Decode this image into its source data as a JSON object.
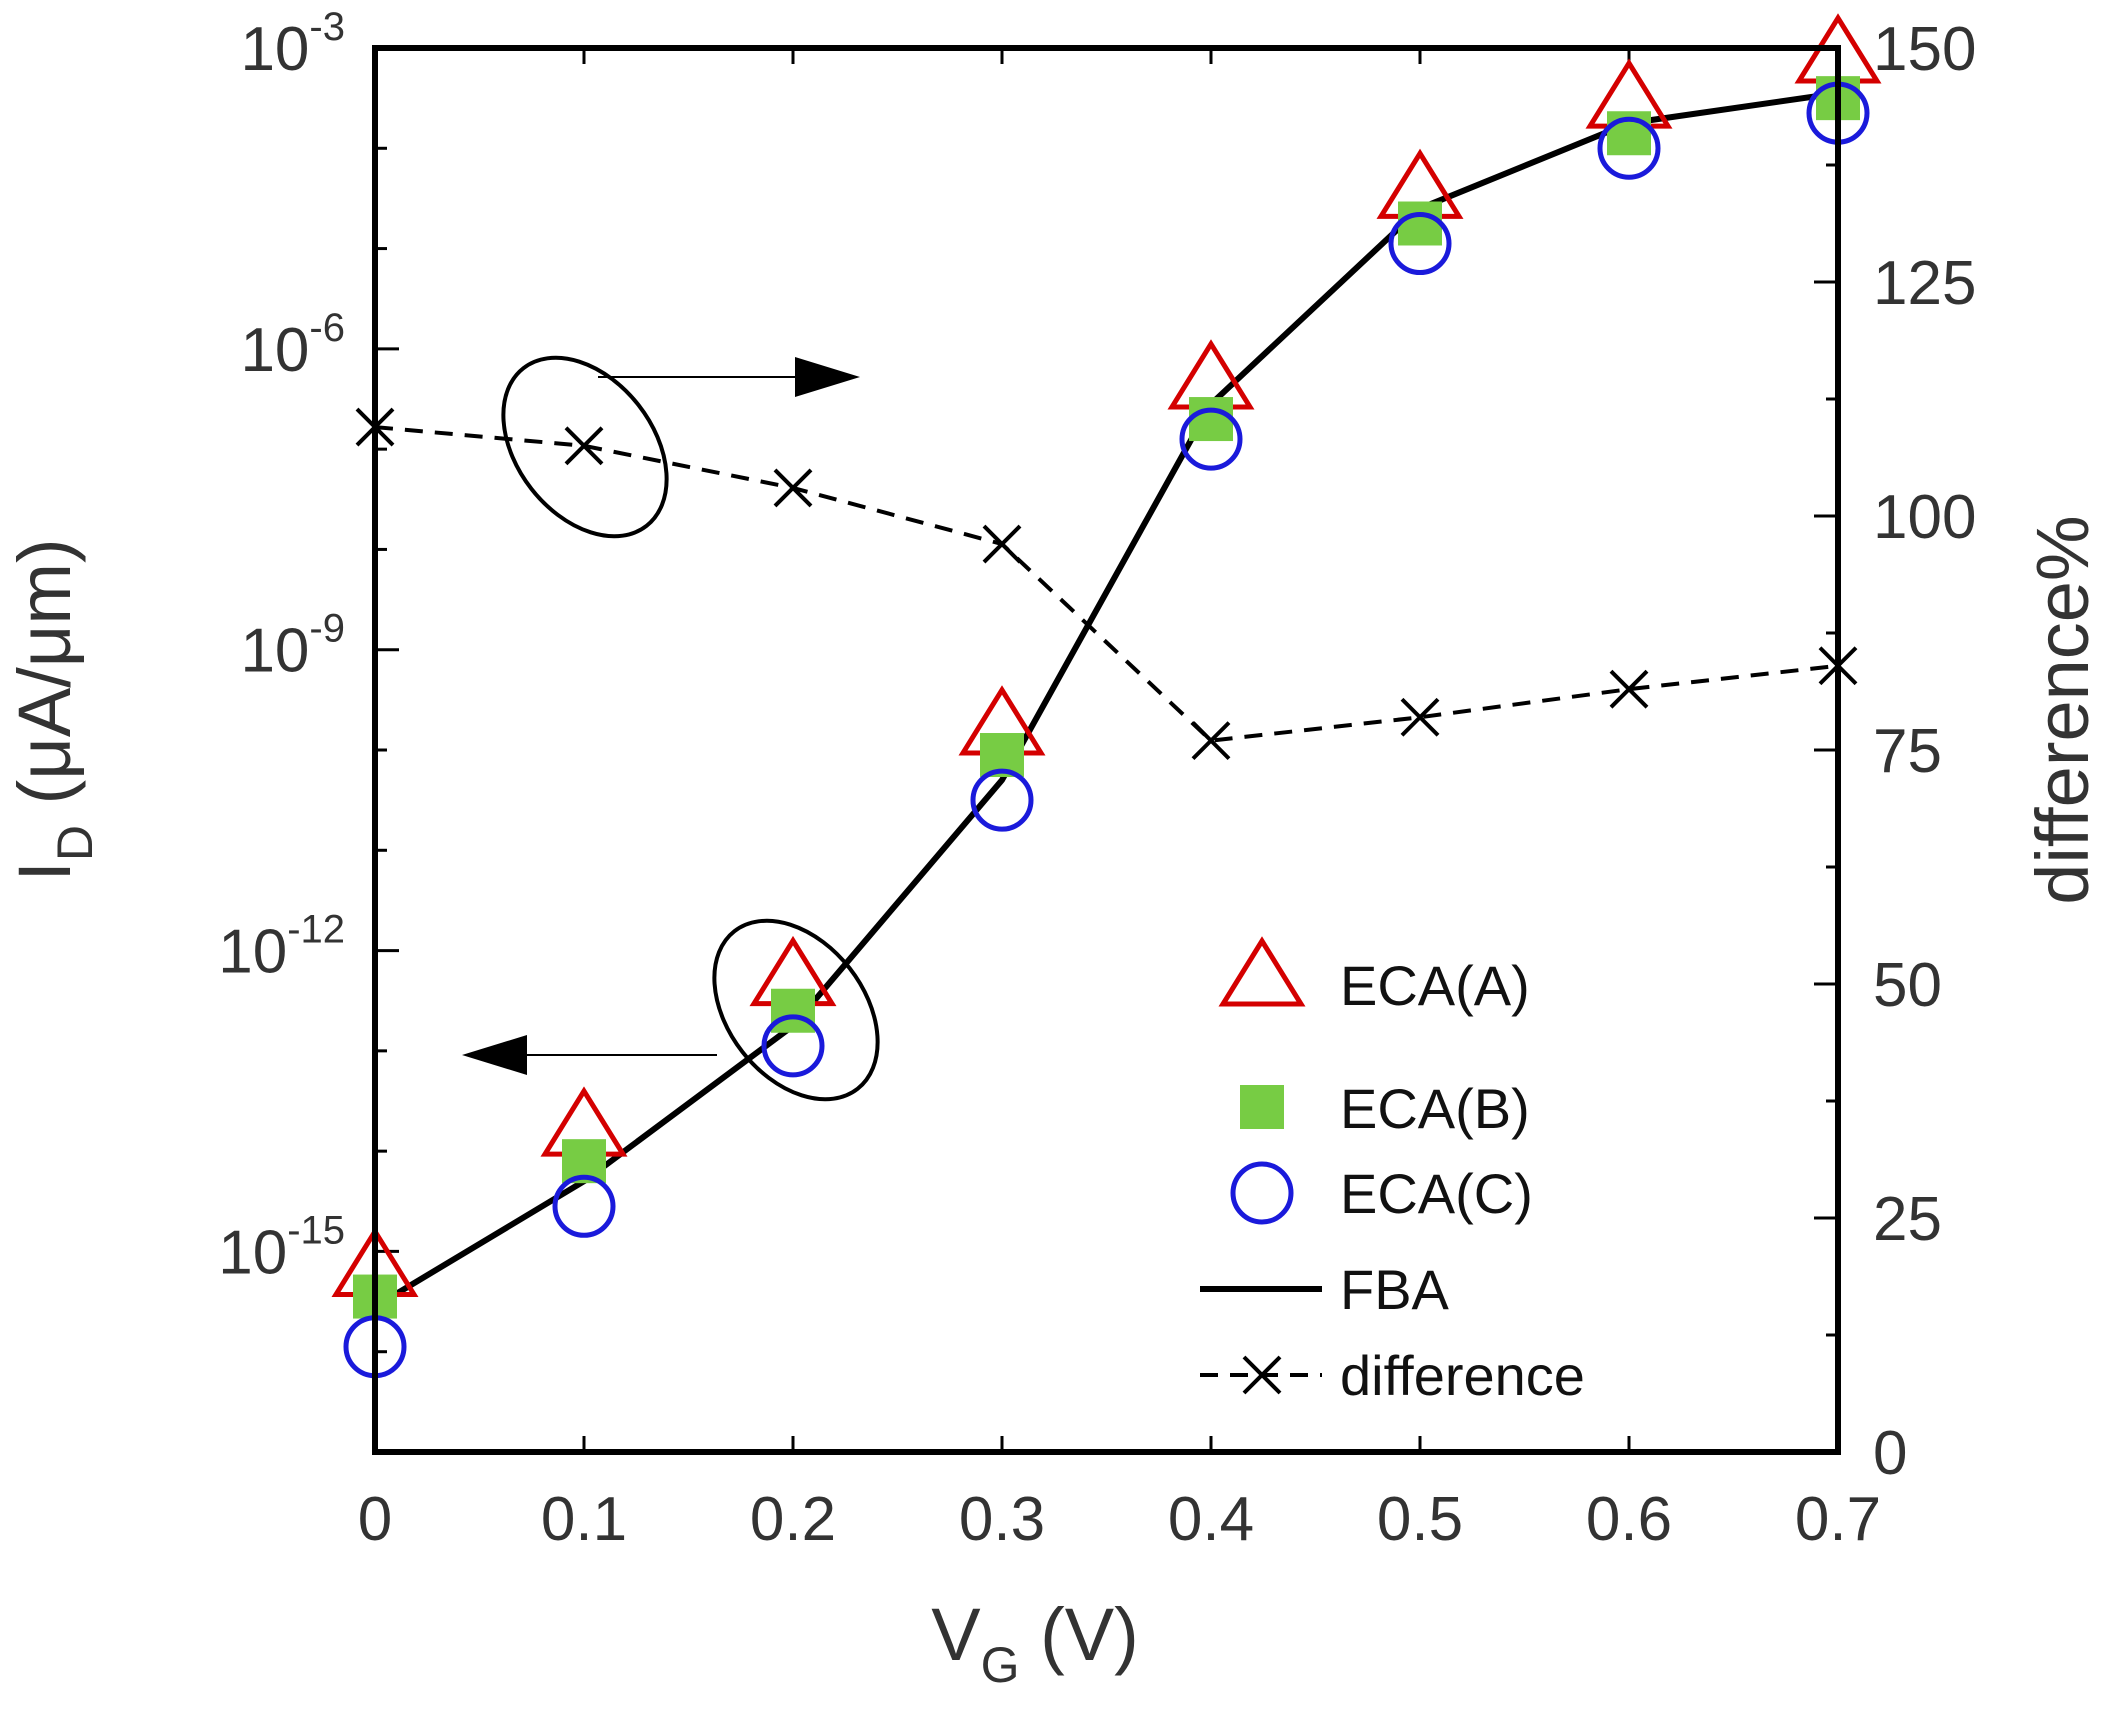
{
  "chart_data": {
    "type": "line",
    "x_axis": {
      "label_main": "V",
      "label_sub": "G",
      "label_unit": " (V)",
      "ticks": [
        "0",
        "0.1",
        "0.2",
        "0.3",
        "0.4",
        "0.5",
        "0.6",
        "0.7"
      ],
      "range": [
        0,
        0.7
      ]
    },
    "y_left": {
      "label_main": "I",
      "label_sub": "D",
      "label_unit": " (μA/μm)",
      "scale": "log",
      "range_exponent": [
        -17,
        -3
      ],
      "ticks": [
        {
          "exp": -15,
          "base": "10",
          "sup": "-15"
        },
        {
          "exp": -12,
          "base": "10",
          "sup": "-12"
        },
        {
          "exp": -9,
          "base": "10",
          "sup": "-9"
        },
        {
          "exp": -6,
          "base": "10",
          "sup": "-6"
        },
        {
          "exp": -3,
          "base": "10",
          "sup": "-3"
        }
      ]
    },
    "y_right": {
      "label": "difference%",
      "range": [
        0,
        150
      ],
      "ticks": [
        "0",
        "25",
        "50",
        "75",
        "100",
        "125",
        "150"
      ]
    },
    "x": [
      0,
      0.1,
      0.2,
      0.3,
      0.4,
      0.5,
      0.6,
      0.7
    ],
    "series": [
      {
        "name": "ECA(A)",
        "axis": "left",
        "marker": "triangle",
        "color": "#d40000",
        "log10_values": [
          -15.2,
          -13.8,
          -12.3,
          -9.8,
          -6.35,
          -4.45,
          -3.55,
          -3.1
        ]
      },
      {
        "name": "ECA(B)",
        "axis": "left",
        "marker": "square",
        "color": "#77cc44",
        "log10_values": [
          -15.45,
          -14.1,
          -12.6,
          -10.05,
          -6.7,
          -4.75,
          -3.85,
          -3.5
        ]
      },
      {
        "name": "ECA(C)",
        "axis": "left",
        "marker": "circle",
        "color": "#1a1adb",
        "log10_values": [
          -15.95,
          -14.55,
          -12.95,
          -10.5,
          -6.9,
          -4.95,
          -4.0,
          -3.65
        ]
      },
      {
        "name": "FBA",
        "axis": "left",
        "marker": "none",
        "line": "solid",
        "color": "#000000",
        "log10_values": [
          -15.55,
          -14.3,
          -12.75,
          -10.3,
          -6.55,
          -4.6,
          -3.75,
          -3.45
        ]
      },
      {
        "name": "difference",
        "axis": "right",
        "marker": "x",
        "line": "dashed",
        "color": "#000000",
        "values": [
          109.5,
          107.5,
          103,
          97,
          76,
          78.5,
          81.5,
          84
        ]
      }
    ],
    "legend": {
      "position": "bottom-right",
      "entries": [
        "ECA(A)",
        "ECA(B)",
        "ECA(C)",
        "FBA",
        "difference"
      ]
    },
    "annotations": [
      {
        "name": "difference-group",
        "points_to": "right-axis"
      },
      {
        "name": "current-group",
        "points_to": "left-axis"
      }
    ],
    "grid": false
  }
}
